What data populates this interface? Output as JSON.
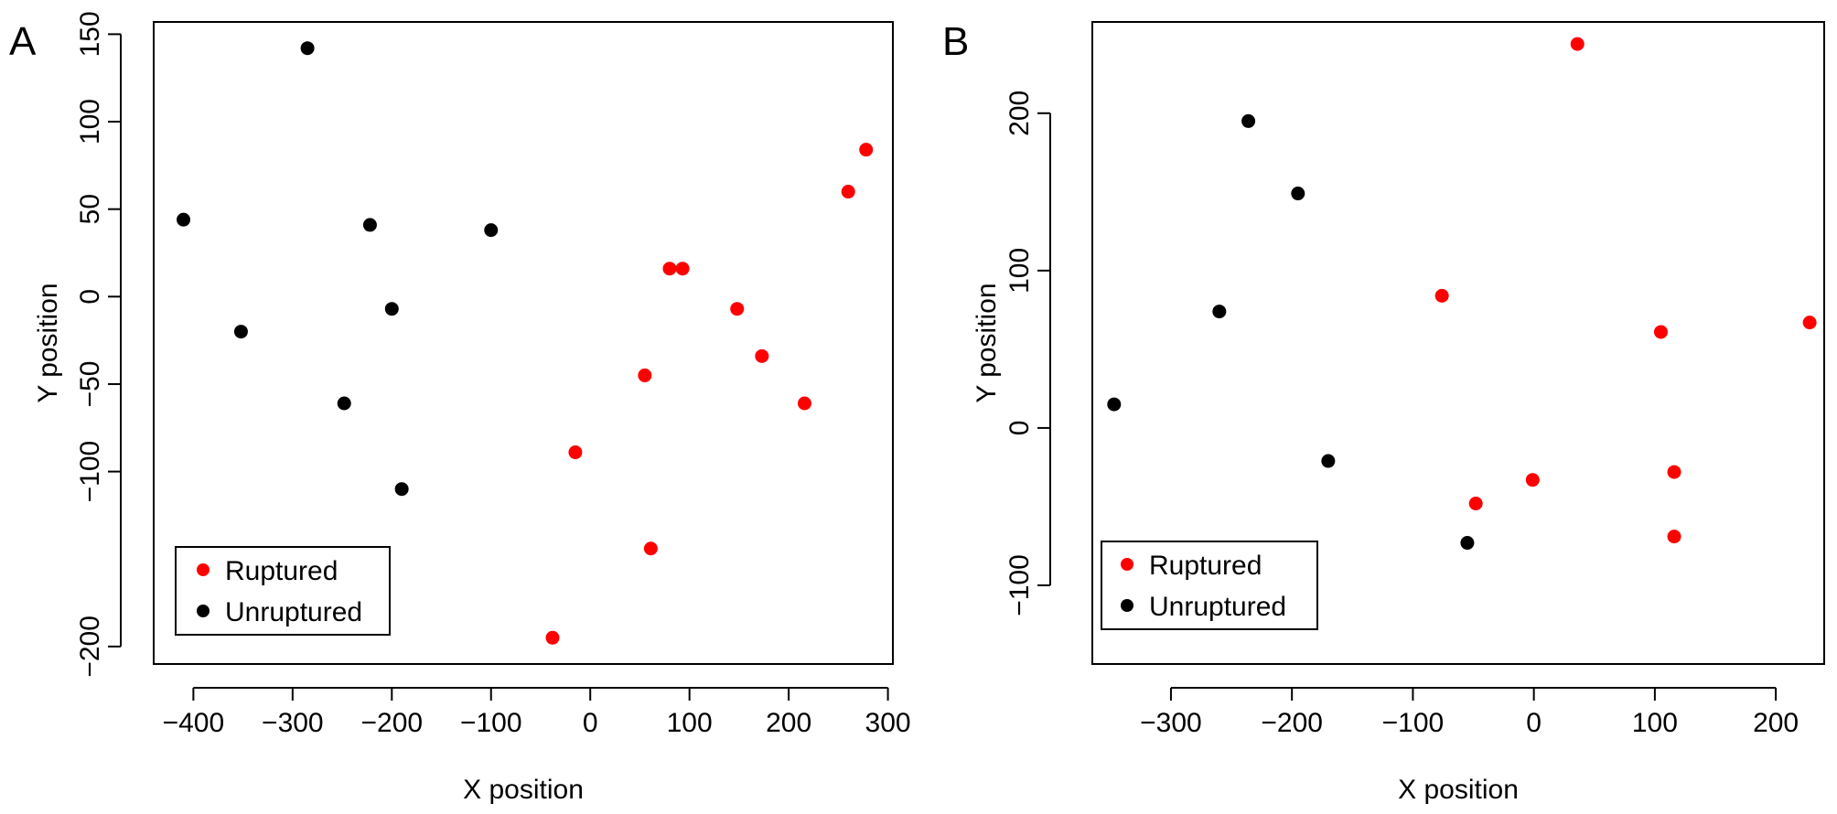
{
  "chart_data": [
    {
      "panel": "A",
      "type": "scatter",
      "title": "",
      "xlabel": "X position",
      "ylabel": "Y position",
      "xlim": [
        -440,
        305
      ],
      "ylim": [
        -210,
        157
      ],
      "xticks": [
        -400,
        -300,
        -200,
        -100,
        0,
        100,
        200,
        300
      ],
      "yticks": [
        -200,
        -100,
        -50,
        0,
        50,
        100,
        150
      ],
      "legend": {
        "position": "bottom-left",
        "entries": [
          "Ruptured",
          "Unruptured"
        ]
      },
      "colors": {
        "Ruptured": "#ff0000",
        "Unruptured": "#000000"
      },
      "series": [
        {
          "name": "Ruptured",
          "points": [
            [
              278,
              84
            ],
            [
              260,
              60
            ],
            [
              80,
              16
            ],
            [
              93,
              16
            ],
            [
              148,
              -7
            ],
            [
              173,
              -34
            ],
            [
              216,
              -61
            ],
            [
              55,
              -45
            ],
            [
              -15,
              -89
            ],
            [
              61,
              -144
            ],
            [
              -38,
              -195
            ]
          ]
        },
        {
          "name": "Unruptured",
          "points": [
            [
              -285,
              142
            ],
            [
              -410,
              44
            ],
            [
              -222,
              41
            ],
            [
              -100,
              38
            ],
            [
              -352,
              -20
            ],
            [
              -200,
              -7
            ],
            [
              -248,
              -61
            ],
            [
              -190,
              -110
            ]
          ]
        }
      ]
    },
    {
      "panel": "B",
      "type": "scatter",
      "title": "",
      "xlabel": "X position",
      "ylabel": "Y position",
      "xlim": [
        -365,
        240
      ],
      "ylim": [
        -150,
        258
      ],
      "xticks": [
        -300,
        -200,
        -100,
        0,
        100,
        200
      ],
      "yticks": [
        -100,
        0,
        100,
        200
      ],
      "legend": {
        "position": "bottom-left",
        "entries": [
          "Ruptured",
          "Unruptured"
        ]
      },
      "colors": {
        "Ruptured": "#ff0000",
        "Unruptured": "#000000"
      },
      "series": [
        {
          "name": "Ruptured",
          "points": [
            [
              36,
              244
            ],
            [
              -76,
              84
            ],
            [
              105,
              61
            ],
            [
              228,
              67
            ],
            [
              116,
              -28
            ],
            [
              -1,
              -33
            ],
            [
              -48,
              -48
            ],
            [
              116,
              -69
            ]
          ]
        },
        {
          "name": "Unruptured",
          "points": [
            [
              -236,
              195
            ],
            [
              -195,
              149
            ],
            [
              -260,
              74
            ],
            [
              -347,
              15
            ],
            [
              -170,
              -21
            ],
            [
              -55,
              -73
            ]
          ]
        }
      ]
    }
  ]
}
